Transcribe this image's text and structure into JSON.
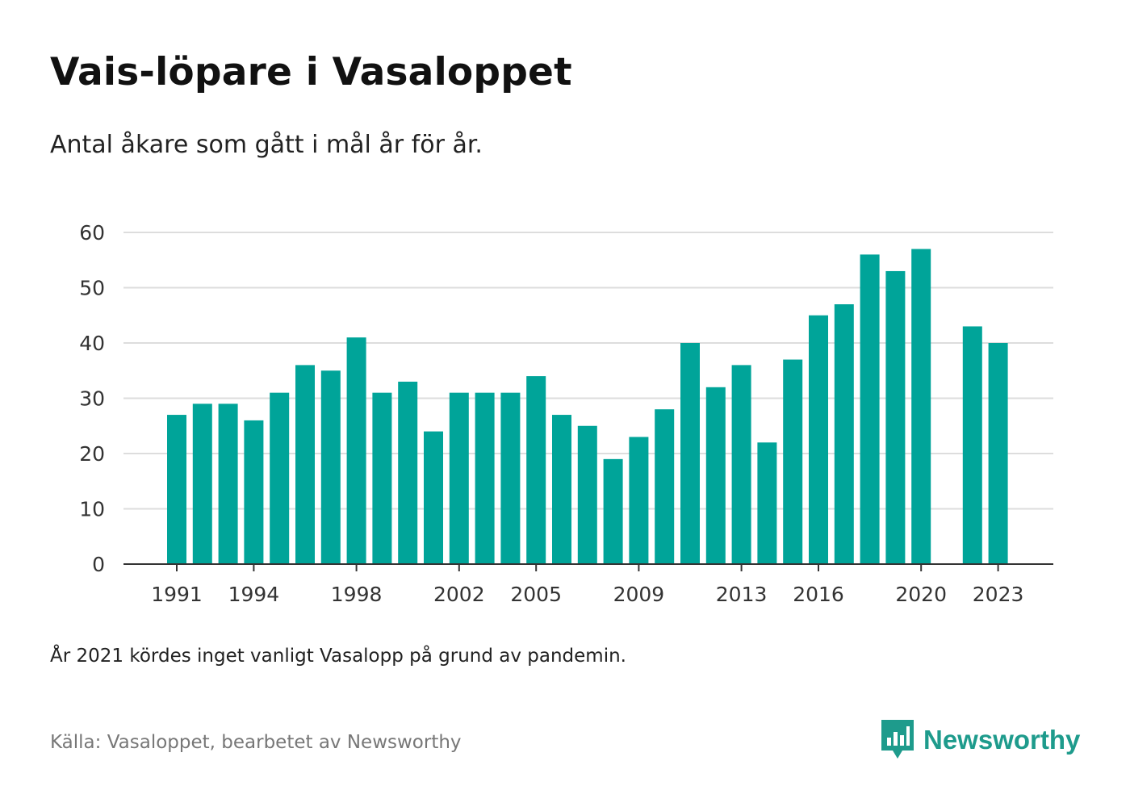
{
  "header": {
    "title": "Vais-löpare i Vasaloppet",
    "subtitle": "Antal åkare som gått i mål år för år."
  },
  "footer": {
    "note": "År 2021 kördes inget vanligt Vasalopp på grund av pandemin.",
    "source": "Källa: Vasaloppet, bearbetet av Newsworthy",
    "brand": "Newsworthy"
  },
  "colors": {
    "bar": "#00a499",
    "grid": "#dddddd",
    "axis": "#333333",
    "brand": "#1e9b8c"
  },
  "chart_data": {
    "type": "bar",
    "title": "Vais-löpare i Vasaloppet",
    "xlabel": "",
    "ylabel": "",
    "ylim": [
      0,
      60
    ],
    "yticks": [
      0,
      10,
      20,
      30,
      40,
      50,
      60
    ],
    "xtick_labels": [
      "1991",
      "1994",
      "1998",
      "2002",
      "2005",
      "2009",
      "2013",
      "2016",
      "2020",
      "2023"
    ],
    "grid": true,
    "categories": [
      1991,
      1992,
      1993,
      1994,
      1995,
      1996,
      1997,
      1998,
      1999,
      2000,
      2001,
      2002,
      2003,
      2004,
      2005,
      2006,
      2007,
      2008,
      2009,
      2010,
      2011,
      2012,
      2013,
      2014,
      2015,
      2016,
      2017,
      2018,
      2019,
      2020,
      2021,
      2022,
      2023
    ],
    "values": [
      27,
      29,
      29,
      26,
      31,
      36,
      35,
      41,
      31,
      33,
      24,
      31,
      31,
      31,
      34,
      27,
      25,
      19,
      23,
      28,
      40,
      32,
      36,
      22,
      37,
      45,
      47,
      56,
      53,
      57,
      null,
      43,
      40
    ]
  }
}
